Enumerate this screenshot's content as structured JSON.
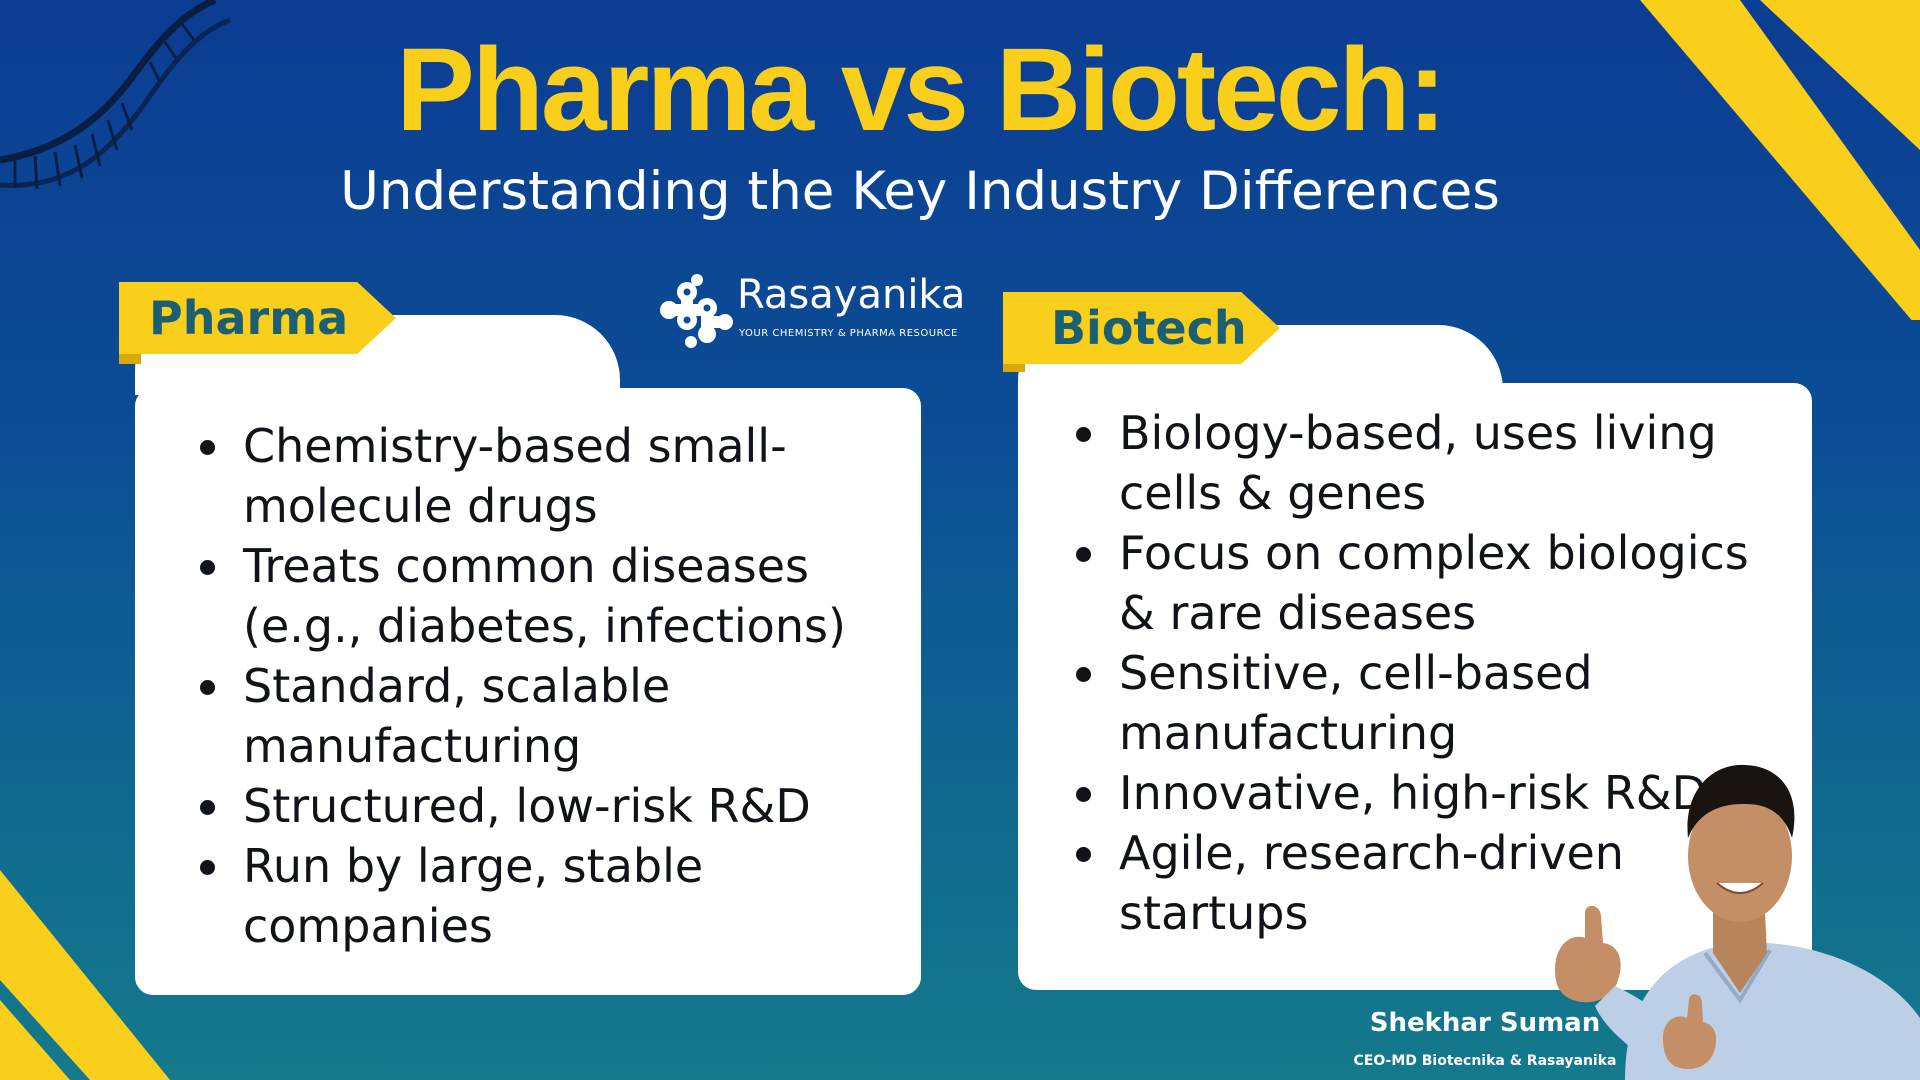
{
  "title": "Pharma vs Biotech:",
  "subtitle": "Understanding the Key Industry Differences",
  "logo": {
    "name": "Rasayanika",
    "tagline": "YOUR CHEMISTRY & PHARMA RESOURCE"
  },
  "pharma": {
    "label": "Pharma",
    "items": [
      "Chemistry-based small-molecule drugs",
      "Treats common diseases (e.g., diabetes, infections)",
      "Standard, scalable manufacturing",
      "Structured, low-risk R&D",
      "Run by large, stable companies"
    ]
  },
  "biotech": {
    "label": "Biotech",
    "items": [
      "Biology-based, uses living cells & genes",
      "Focus on complex biologics & rare diseases",
      "Sensitive, cell-based manufacturing",
      "Innovative, high-risk R&D",
      "Agile, research-driven startups"
    ]
  },
  "presenter": {
    "name": "Shekhar Suman",
    "title": "CEO-MD Biotecnika & Rasayanika"
  },
  "colors": {
    "accent": "#f9cf1b",
    "background_top": "#0b3d93",
    "background_bottom": "#147a8c",
    "label_text": "#1b5f74"
  }
}
